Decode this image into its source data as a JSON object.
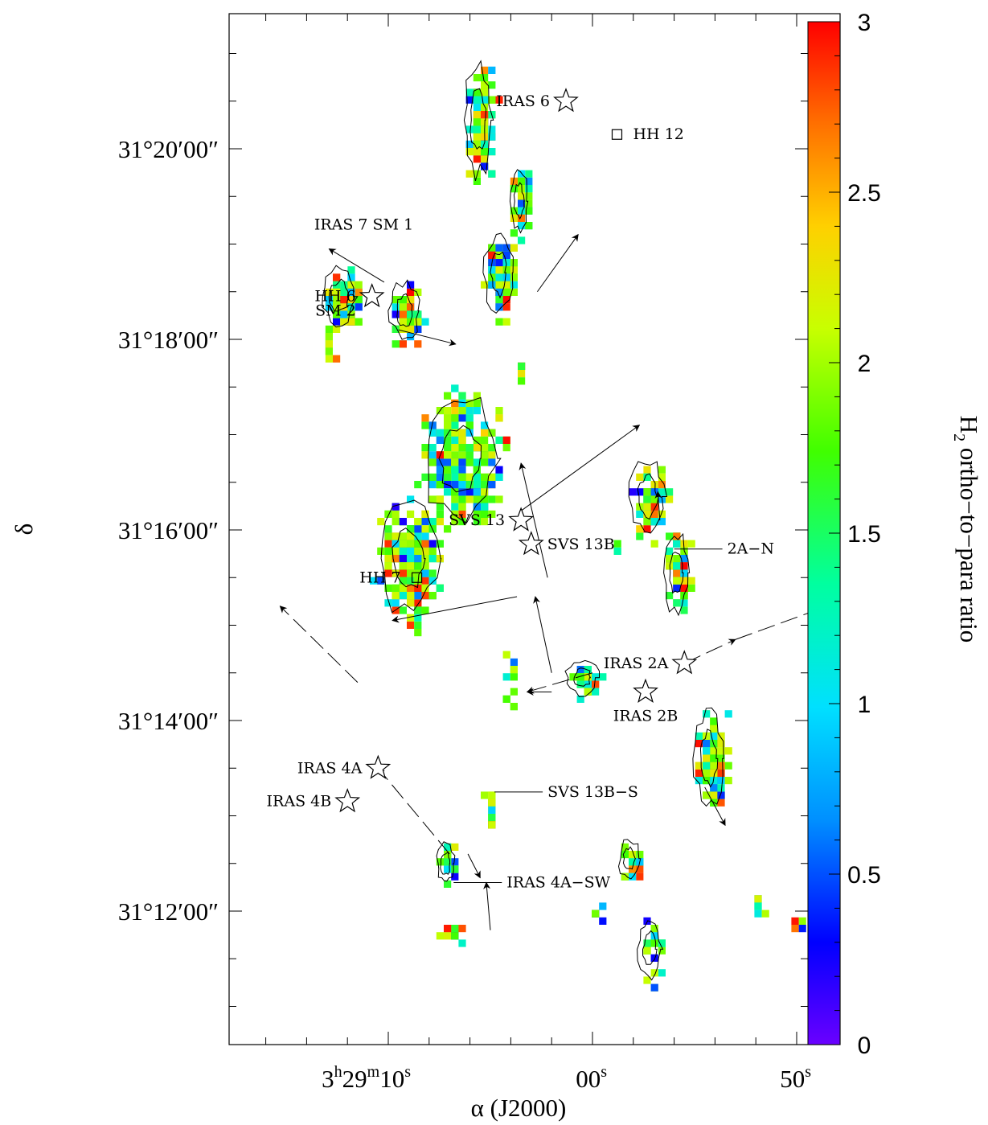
{
  "chart_data": {
    "type": "heatmap",
    "xlabel": "α (J2000)",
    "ylabel": "δ",
    "x_ticks": [
      {
        "label": "3",
        "sup1": "h",
        "mid": "29",
        "sup2": "m",
        "tail": "10",
        "sup3": "s",
        "ra_s": 10
      },
      {
        "label": "00",
        "sup3": "s",
        "ra_s": 0
      },
      {
        "label": "50",
        "sup3": "s",
        "ra_s": -10
      }
    ],
    "y_ticks": [
      {
        "label": "31°20′00″",
        "dec_arcmin": 20
      },
      {
        "label": "31°18′00″",
        "dec_arcmin": 18
      },
      {
        "label": "31°16′00″",
        "dec_arcmin": 16
      },
      {
        "label": "31°14′00″",
        "dec_arcmin": 14
      },
      {
        "label": "31°12′00″",
        "dec_arcmin": 12
      }
    ],
    "colorbar": {
      "label_main": "H",
      "label_sub": "2",
      "label_rest": " ortho−to−para ratio",
      "min": 0,
      "max": 3,
      "ticks": [
        "0",
        "0.5",
        "1",
        "1.5",
        "2",
        "2.5",
        "3"
      ],
      "tick_values": [
        0,
        0.5,
        1,
        1.5,
        2,
        2.5,
        3
      ]
    },
    "clusters": [
      {
        "ra": 5.6,
        "dec": 20.3,
        "rx": 0.95,
        "ry": 0.8,
        "n": 95
      },
      {
        "ra": 3.6,
        "dec": 19.45,
        "rx": 0.6,
        "ry": 0.45,
        "n": 40
      },
      {
        "ra": 4.6,
        "dec": 18.7,
        "rx": 0.95,
        "ry": 0.6,
        "n": 105
      },
      {
        "ra": 12.4,
        "dec": 18.45,
        "rx": 1.15,
        "ry": 0.42,
        "n": 95
      },
      {
        "ra": 9.2,
        "dec": 18.3,
        "rx": 1.0,
        "ry": 0.42,
        "n": 60
      },
      {
        "ra": 13.0,
        "dec": 17.95,
        "rx": 0.35,
        "ry": 0.2,
        "n": 8
      },
      {
        "ra": 6.5,
        "dec": 16.75,
        "rx": 2.5,
        "ry": 0.9,
        "n": 300
      },
      {
        "ra": 9.0,
        "dec": 15.7,
        "rx": 2.0,
        "ry": 0.8,
        "n": 280
      },
      {
        "ra": -2.7,
        "dec": 16.35,
        "rx": 1.2,
        "ry": 0.55,
        "n": 60
      },
      {
        "ra": -4.1,
        "dec": 15.55,
        "rx": 0.85,
        "ry": 0.6,
        "n": 55
      },
      {
        "ra": 4.2,
        "dec": 14.45,
        "rx": 0.25,
        "ry": 0.55,
        "n": 12
      },
      {
        "ra": 0.5,
        "dec": 14.45,
        "rx": 1.1,
        "ry": 0.25,
        "n": 30
      },
      {
        "ra": -5.7,
        "dec": 13.6,
        "rx": 1.0,
        "ry": 0.7,
        "n": 95
      },
      {
        "ra": 5.1,
        "dec": 13.05,
        "rx": 0.35,
        "ry": 0.45,
        "n": 18
      },
      {
        "ra": 7.2,
        "dec": 12.5,
        "rx": 0.6,
        "ry": 0.3,
        "n": 22
      },
      {
        "ra": -1.8,
        "dec": 12.55,
        "rx": 0.7,
        "ry": 0.3,
        "n": 22
      },
      {
        "ra": -2.8,
        "dec": 11.6,
        "rx": 0.8,
        "ry": 0.45,
        "n": 22
      },
      {
        "ra": 6.9,
        "dec": 11.8,
        "rx": 0.9,
        "ry": 0.18,
        "n": 14
      },
      {
        "ra": -8.0,
        "dec": 12.1,
        "rx": 0.3,
        "ry": 0.2,
        "n": 6
      },
      {
        "ra": -10.0,
        "dec": 11.9,
        "rx": 0.25,
        "ry": 0.12,
        "n": 4
      },
      {
        "ra": 0.0,
        "dec": 12.0,
        "rx": 0.5,
        "ry": 0.1,
        "n": 7
      },
      {
        "ra": -1.0,
        "dec": 15.8,
        "rx": 0.2,
        "ry": 0.15,
        "n": 3
      },
      {
        "ra": 3.6,
        "dec": 17.7,
        "rx": 0.3,
        "ry": 0.15,
        "n": 4
      }
    ],
    "sources": [
      {
        "name": "IRAS 6",
        "ra": 1.3,
        "dec": 20.5,
        "symbol": "star",
        "label_side": "left"
      },
      {
        "name": "HH 12",
        "ra": -1.2,
        "dec": 20.15,
        "symbol": "box",
        "label_side": "right"
      },
      {
        "name": "SVS 13",
        "ra": 3.5,
        "dec": 16.1,
        "symbol": "star",
        "label_side": "left"
      },
      {
        "name": "HH 7",
        "ra": 8.6,
        "dec": 15.5,
        "symbol": "box",
        "label_side": "left"
      },
      {
        "name": "SVS 13B",
        "ra": 3.0,
        "dec": 15.85,
        "symbol": "star",
        "label_side": "right"
      },
      {
        "name": "IRAS 2A",
        "ra": -4.5,
        "dec": 14.6,
        "symbol": "star",
        "label_side": "left"
      },
      {
        "name": "IRAS 2B",
        "ra": -2.6,
        "dec": 14.3,
        "symbol": "star",
        "label_side": "below"
      },
      {
        "name": "IRAS 4A",
        "ra": 10.5,
        "dec": 13.5,
        "symbol": "star",
        "label_side": "left"
      },
      {
        "name": "IRAS 4B",
        "ra": 12.0,
        "dec": 13.15,
        "symbol": "star",
        "label_side": "left"
      },
      {
        "name": "HH 6",
        "ra": 10.8,
        "dec": 18.45,
        "symbol": "star",
        "label_side": "left"
      },
      {
        "name": "SM 2",
        "ra": 10.8,
        "dec": 18.3,
        "symbol": "none",
        "label_side": "left"
      },
      {
        "name": "IRAS 7 SM 1",
        "ra": 11.2,
        "dec": 19.0,
        "symbol": "none",
        "label_side": "above"
      },
      {
        "name": "2A−N",
        "ra": -4.0,
        "dec": 15.8,
        "symbol": "none",
        "label_side": "right"
      },
      {
        "name": "SVS 13B−S",
        "ra": 4.8,
        "dec": 13.25,
        "symbol": "none",
        "label_side": "right"
      },
      {
        "name": "IRAS 4A−SW",
        "ra": 6.8,
        "dec": 12.3,
        "symbol": "none",
        "label_side": "right"
      }
    ],
    "grid": false
  }
}
